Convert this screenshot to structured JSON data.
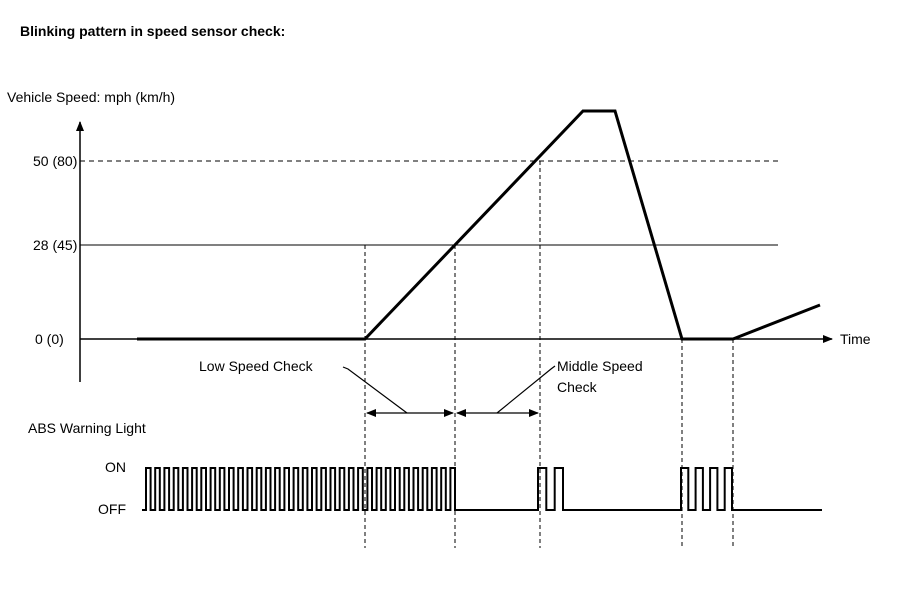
{
  "title": "Blinking pattern in speed sensor check:",
  "y_axis_label": "Vehicle Speed: mph (km/h)",
  "x_axis_label": "Time",
  "speed_levels": [
    {
      "label": "50 (80)",
      "mph": 50,
      "style": "dashed"
    },
    {
      "label": "28 (45)",
      "mph": 28,
      "style": "solid"
    },
    {
      "label": "0 (0)",
      "mph": 0,
      "style": "axis"
    }
  ],
  "annotations": {
    "low_speed": "Low Speed Check",
    "middle_speed_line1": "Middle Speed",
    "middle_speed_line2": "Check"
  },
  "abs": {
    "label": "ABS Warning Light",
    "on_label": "ON",
    "off_label": "OFF",
    "pulse_groups": [
      {
        "phase": "before and during low speed check",
        "pulses": 34
      },
      {
        "phase": "middle speed reached",
        "pulses": 2
      },
      {
        "phase": "after stop",
        "pulses": 4
      }
    ]
  },
  "colors": {
    "line": "#000000",
    "background": "#ffffff"
  }
}
